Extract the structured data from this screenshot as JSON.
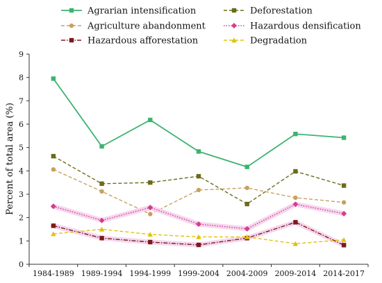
{
  "chart_data": {
    "type": "line",
    "ylabel": "Percent of total area (%)",
    "xlabel": "",
    "categories": [
      "1984-1989",
      "1989-1994",
      "1994-1999",
      "1999-2004",
      "2004-2009",
      "2009-2014",
      "2014-2017"
    ],
    "ylim": [
      0,
      9
    ],
    "yticks": [
      "0",
      "1",
      "2",
      "3",
      "4",
      "5",
      "6",
      "7",
      "8",
      "9"
    ],
    "grid": false,
    "legend_position": "top",
    "series": [
      {
        "name": "Agrarian intensification",
        "values": [
          7.95,
          5.05,
          6.18,
          4.83,
          4.17,
          5.58,
          5.42
        ],
        "color": "#3cb371",
        "dash": "solid",
        "marker": "square",
        "halo": false
      },
      {
        "name": "Deforestation",
        "values": [
          4.63,
          3.45,
          3.5,
          3.77,
          2.58,
          3.98,
          3.37
        ],
        "color": "#6b6b1a",
        "dash": "dash",
        "marker": "square",
        "halo": false
      },
      {
        "name": "Agriculture abandonment",
        "values": [
          4.06,
          3.12,
          2.15,
          3.18,
          3.27,
          2.85,
          2.65
        ],
        "color": "#c8a060",
        "dash": "dash",
        "marker": "circle",
        "halo": false
      },
      {
        "name": "Hazardous densification",
        "values": [
          2.48,
          1.88,
          2.43,
          1.72,
          1.52,
          2.57,
          2.17
        ],
        "color": "#d63c8c",
        "dash": "dot",
        "marker": "diamond",
        "halo": true
      },
      {
        "name": "Hazardous afforestation",
        "values": [
          1.65,
          1.12,
          0.95,
          0.83,
          1.12,
          1.8,
          0.82
        ],
        "color": "#7a1a1a",
        "dash": "dashdot",
        "marker": "square",
        "halo": true
      },
      {
        "name": "Degradation",
        "values": [
          1.3,
          1.5,
          1.28,
          1.17,
          1.17,
          0.88,
          1.05
        ],
        "color": "#e0c20a",
        "dash": "dash",
        "marker": "triangle",
        "halo": false
      }
    ]
  }
}
